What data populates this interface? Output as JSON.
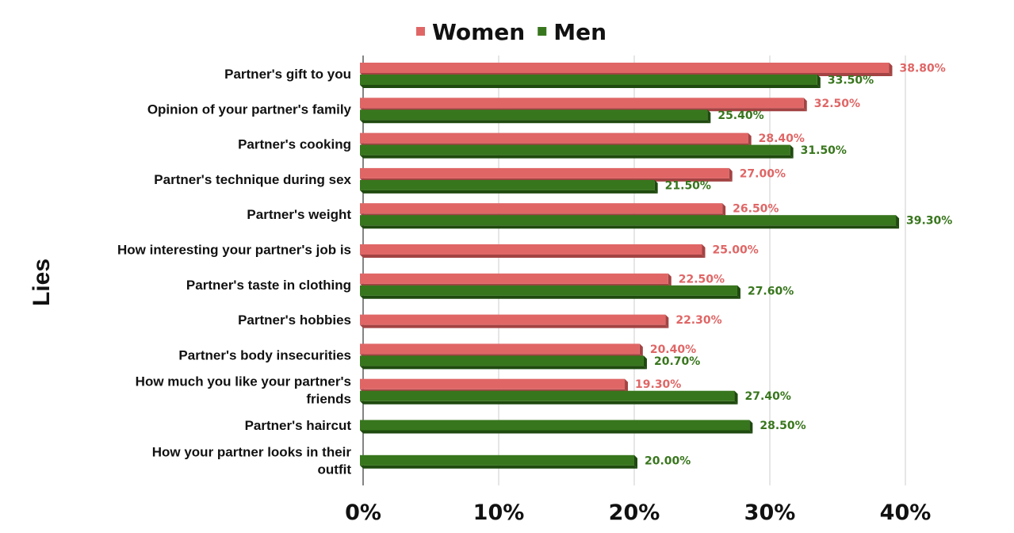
{
  "chart_data": {
    "type": "bar",
    "orientation": "horizontal",
    "ylabel": "Lies",
    "xlim": [
      0,
      40
    ],
    "x_ticks": [
      "0%",
      "10%",
      "20%",
      "30%",
      "40%"
    ],
    "grid": true,
    "legend_position": "top-center",
    "categories": [
      [
        "Partner's gift to you"
      ],
      [
        "Opinion of your partner's family"
      ],
      [
        "Partner's cooking"
      ],
      [
        "Partner's technique during sex"
      ],
      [
        "Partner's weight"
      ],
      [
        "How interesting your partner's job is"
      ],
      [
        "Partner's taste in clothing"
      ],
      [
        "Partner's hobbies"
      ],
      [
        "Partner's body insecurities"
      ],
      [
        "How much you like your partner's",
        "friends"
      ],
      [
        "Partner's haircut"
      ],
      [
        "How your partner looks in their",
        "outfit"
      ]
    ],
    "series": [
      {
        "name": "Women",
        "color": "#e06666",
        "shade": "#a34343",
        "label_color": "#e06666",
        "values": [
          38.8,
          32.5,
          28.4,
          27.0,
          26.5,
          25.0,
          22.5,
          22.3,
          20.4,
          19.3,
          null,
          null
        ],
        "labels": [
          "38.80%",
          "32.50%",
          "28.40%",
          "27.00%",
          "26.50%",
          "25.00%",
          "22.50%",
          "22.30%",
          "20.40%",
          "19.30%",
          null,
          null
        ]
      },
      {
        "name": "Men",
        "color": "#38761d",
        "shade": "#1f4a0f",
        "label_color": "#38761d",
        "values": [
          33.5,
          25.4,
          31.5,
          21.5,
          39.3,
          null,
          27.6,
          null,
          20.7,
          27.4,
          28.5,
          20.0
        ],
        "labels": [
          "33.50%",
          "25.40%",
          "31.50%",
          "21.50%",
          "39.30%",
          null,
          "27.60%",
          null,
          "20.70%",
          "27.40%",
          "28.50%",
          "20.00%"
        ]
      }
    ]
  }
}
